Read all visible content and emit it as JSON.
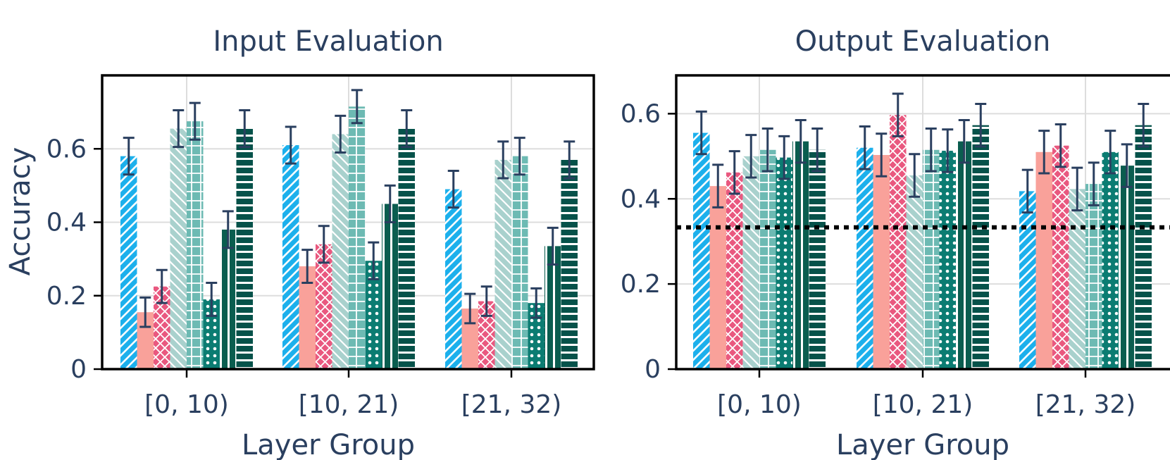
{
  "colors": {
    "text": "#2a3f5f",
    "grid": "#dddddd",
    "blue": "#1cb0ec",
    "salmon": "#f9a19a",
    "pink": "#e9587f",
    "lightTeal": "#a9d1cd",
    "midTeal": "#6dbab3",
    "teal": "#0b7c72",
    "darkTeal": "#0a5d4f",
    "darkerTeal": "#06524a",
    "error": "#2a3f5f",
    "baseline": "#000000"
  },
  "chart_data": [
    {
      "type": "bar",
      "title": "Input Evaluation",
      "xlabel": "Layer Group",
      "ylabel": "Accuracy",
      "categories": [
        "[0, 10)",
        "[10, 21)",
        "[21, 32)"
      ],
      "ylim": [
        0,
        0.8
      ],
      "yticks": [
        0,
        0.2,
        0.4,
        0.6
      ],
      "ytick_labels": [
        "0",
        "0.2",
        "0.4",
        "0.6"
      ],
      "grid": true,
      "series": [
        {
          "color": "blue",
          "pattern": "diag",
          "values": [
            0.58,
            0.61,
            0.49
          ],
          "errors": [
            0.05,
            0.05,
            0.05
          ]
        },
        {
          "color": "salmon",
          "pattern": "solid",
          "values": [
            0.155,
            0.28,
            0.165
          ],
          "errors": [
            0.04,
            0.045,
            0.04
          ]
        },
        {
          "color": "pink",
          "pattern": "cross",
          "values": [
            0.225,
            0.34,
            0.185
          ],
          "errors": [
            0.045,
            0.05,
            0.04
          ]
        },
        {
          "color": "lightTeal",
          "pattern": "backdiag",
          "values": [
            0.655,
            0.64,
            0.57
          ],
          "errors": [
            0.05,
            0.05,
            0.05
          ]
        },
        {
          "color": "midTeal",
          "pattern": "grid",
          "values": [
            0.675,
            0.715,
            0.58
          ],
          "errors": [
            0.05,
            0.045,
            0.05
          ]
        },
        {
          "color": "teal",
          "pattern": "dots",
          "values": [
            0.19,
            0.295,
            0.18
          ],
          "errors": [
            0.045,
            0.05,
            0.04
          ]
        },
        {
          "color": "darkTeal",
          "pattern": "vlines",
          "values": [
            0.38,
            0.45,
            0.335
          ],
          "errors": [
            0.05,
            0.05,
            0.05
          ]
        },
        {
          "color": "darkerTeal",
          "pattern": "hlines",
          "values": [
            0.655,
            0.655,
            0.57
          ],
          "errors": [
            0.05,
            0.05,
            0.05
          ]
        }
      ]
    },
    {
      "type": "bar",
      "title": "Output Evaluation",
      "xlabel": "Layer Group",
      "ylabel": "",
      "categories": [
        "[0, 10)",
        "[10, 21)",
        "[21, 32)"
      ],
      "ylim": [
        0,
        0.69
      ],
      "yticks": [
        0,
        0.2,
        0.4,
        0.6
      ],
      "ytick_labels": [
        "0",
        "0.2",
        "0.4",
        "0.6"
      ],
      "grid": true,
      "baseline": 0.333,
      "series": [
        {
          "color": "blue",
          "pattern": "diag",
          "values": [
            0.555,
            0.52,
            0.418
          ],
          "errors": [
            0.05,
            0.05,
            0.05
          ]
        },
        {
          "color": "salmon",
          "pattern": "solid",
          "values": [
            0.43,
            0.503,
            0.51
          ],
          "errors": [
            0.05,
            0.05,
            0.05
          ]
        },
        {
          "color": "pink",
          "pattern": "cross",
          "values": [
            0.462,
            0.597,
            0.525
          ],
          "errors": [
            0.05,
            0.05,
            0.05
          ]
        },
        {
          "color": "lightTeal",
          "pattern": "backdiag",
          "values": [
            0.5,
            0.455,
            0.423
          ],
          "errors": [
            0.05,
            0.05,
            0.05
          ]
        },
        {
          "color": "midTeal",
          "pattern": "grid",
          "values": [
            0.515,
            0.515,
            0.435
          ],
          "errors": [
            0.05,
            0.05,
            0.05
          ]
        },
        {
          "color": "teal",
          "pattern": "dots",
          "values": [
            0.497,
            0.513,
            0.51
          ],
          "errors": [
            0.05,
            0.05,
            0.05
          ]
        },
        {
          "color": "darkTeal",
          "pattern": "vlines",
          "values": [
            0.535,
            0.535,
            0.478
          ],
          "errors": [
            0.05,
            0.05,
            0.05
          ]
        },
        {
          "color": "darkerTeal",
          "pattern": "hlines",
          "values": [
            0.515,
            0.573,
            0.573
          ],
          "errors": [
            0.05,
            0.05,
            0.05
          ]
        }
      ]
    }
  ]
}
